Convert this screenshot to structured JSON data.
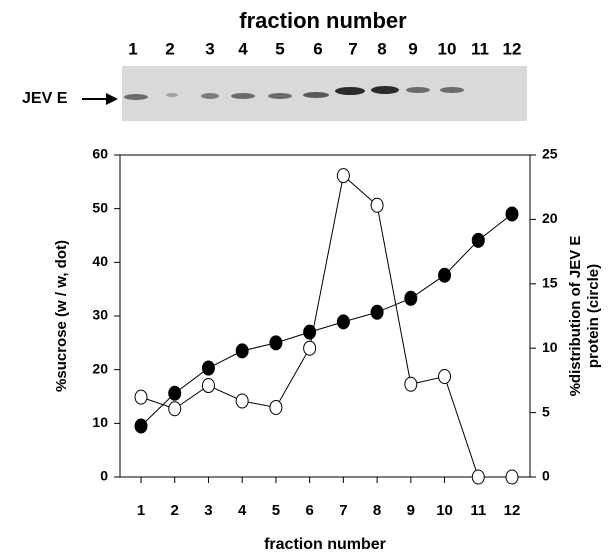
{
  "blot": {
    "title": "fraction number",
    "lanes": [
      "1",
      "2",
      "3",
      "4",
      "5",
      "6",
      "7",
      "8",
      "9",
      "10",
      "11",
      "12"
    ],
    "label": "JEV E"
  },
  "chart_data": {
    "type": "line",
    "categories": [
      "1",
      "2",
      "3",
      "4",
      "5",
      "6",
      "7",
      "8",
      "9",
      "10",
      "11",
      "12"
    ],
    "xlabel": "fraction number",
    "ylabel": "%sucrose (w / w, dot)",
    "y2label": [
      "%distribution of JEV E",
      "protein (circle)"
    ],
    "ylim": [
      0,
      60
    ],
    "yticks": [
      0,
      10,
      20,
      30,
      40,
      50,
      60
    ],
    "y2lim": [
      0,
      25
    ],
    "y2ticks": [
      0,
      5,
      10,
      15,
      20,
      25
    ],
    "series": [
      {
        "color": "#000000",
        "marker": "filled",
        "values": [
          9.5,
          15.6,
          20.3,
          23.5,
          25,
          27,
          28.9,
          30.7,
          33.3,
          37.6,
          44.1,
          49
        ]
      },
      {
        "color": "#000000",
        "marker": "open",
        "axis": "y2",
        "values": [
          6.2,
          5.3,
          7.1,
          5.9,
          5.4,
          10,
          23.4,
          21.1,
          7.2,
          7.8,
          0,
          0
        ]
      }
    ]
  }
}
